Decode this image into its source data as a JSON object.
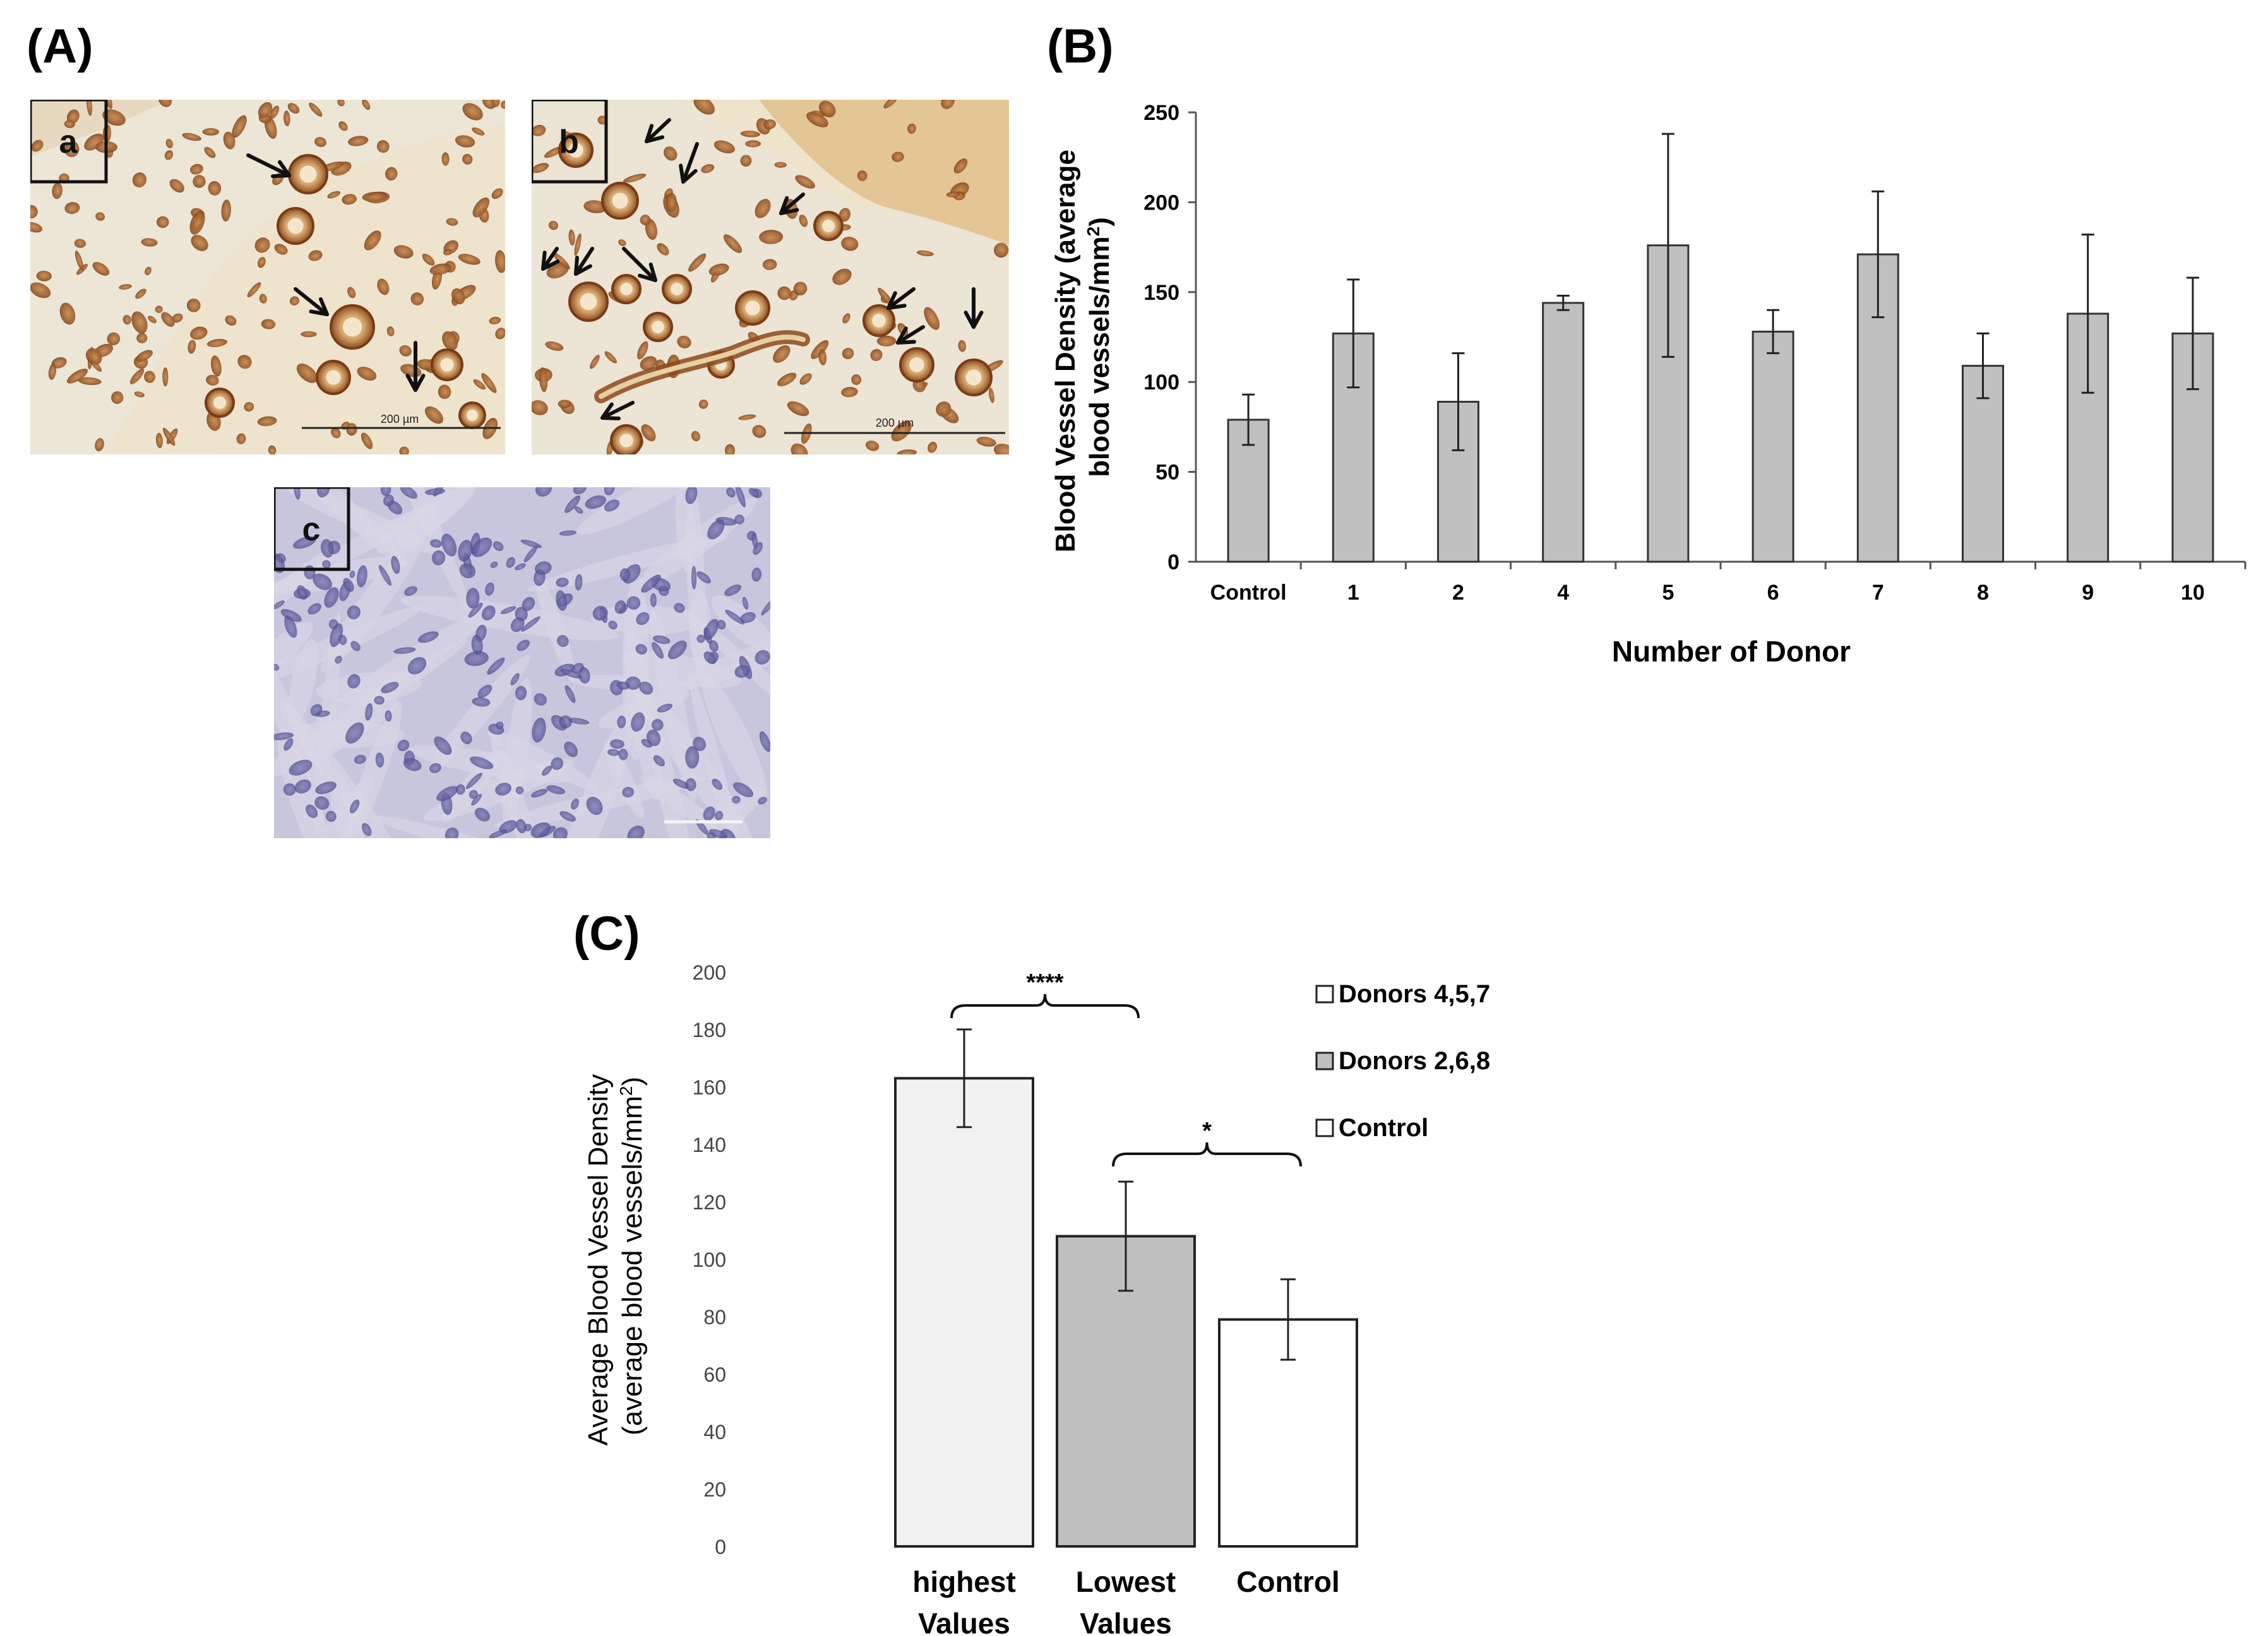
{
  "figure": {
    "panel_a_label": "(A)",
    "panel_b_label": "(B)",
    "panel_c_label": "(C)"
  },
  "micrographs": [
    {
      "id": "a",
      "letter": "a",
      "scale_text": "200 µm",
      "stain": "brown-DAB",
      "background": "#ebe6d6"
    },
    {
      "id": "b",
      "letter": "b",
      "scale_text": "200 µm",
      "stain": "brown-DAB",
      "background": "#ece4d4"
    },
    {
      "id": "c",
      "letter": "c",
      "scale_text": "",
      "stain": "hematoxylin-negative",
      "background": "#c8c6dc"
    }
  ],
  "icons": {
    "arrow": "arrow-icon"
  },
  "colors": {
    "bar_b": "#c0c0c0",
    "bar_c_highest": "#f2f2f2",
    "bar_c_lowest": "#c0c0c0",
    "bar_c_control": "#ffffff",
    "axis": "#555555"
  },
  "chart_data": [
    {
      "type": "bar",
      "categories": [
        "Control",
        "1",
        "2",
        "4",
        "5",
        "6",
        "7",
        "8",
        "9",
        "10"
      ],
      "values": [
        79,
        127,
        89,
        144,
        176,
        128,
        171,
        109,
        138,
        127
      ],
      "errors": [
        14,
        30,
        27,
        4,
        62,
        12,
        35,
        18,
        44,
        31
      ],
      "xlabel": "Number of Donor",
      "ylabel_line1": "Blood Vessel Density (average",
      "ylabel_line2": "blood vessels/mm",
      "ylabel_sup": "2",
      "ylabel_close": ")",
      "ylim": [
        0,
        250
      ],
      "yticks": [
        0,
        50,
        100,
        150,
        200,
        250
      ],
      "grid": false
    },
    {
      "type": "bar",
      "categories": [
        "highest Values",
        "Lowest Values",
        "Control"
      ],
      "category_lines": [
        [
          "highest",
          "Values"
        ],
        [
          "Lowest",
          "Values"
        ],
        [
          "Control"
        ]
      ],
      "values": [
        163,
        108,
        79
      ],
      "errors": [
        17,
        19,
        14
      ],
      "ylabel_line1": "Average Blood Vessel Density",
      "ylabel_line2": "(average blood vessels/mm",
      "ylabel_sup": "2",
      "ylabel_close": ")",
      "ylim": [
        0,
        200
      ],
      "yticks": [
        0,
        20,
        40,
        60,
        80,
        100,
        120,
        140,
        160,
        180,
        200
      ],
      "legend": [
        {
          "name": "Donors 4,5,7",
          "color": "#ffffff"
        },
        {
          "name": "Donors 2,6,8",
          "color": "#c0c0c0"
        },
        {
          "name": "Control",
          "color": "#ffffff"
        }
      ],
      "legend_position": "right",
      "significance": [
        {
          "from": 0,
          "to": 1,
          "label": "****"
        },
        {
          "from": 1,
          "to": 2,
          "label": "*"
        }
      ],
      "grid": false
    }
  ]
}
